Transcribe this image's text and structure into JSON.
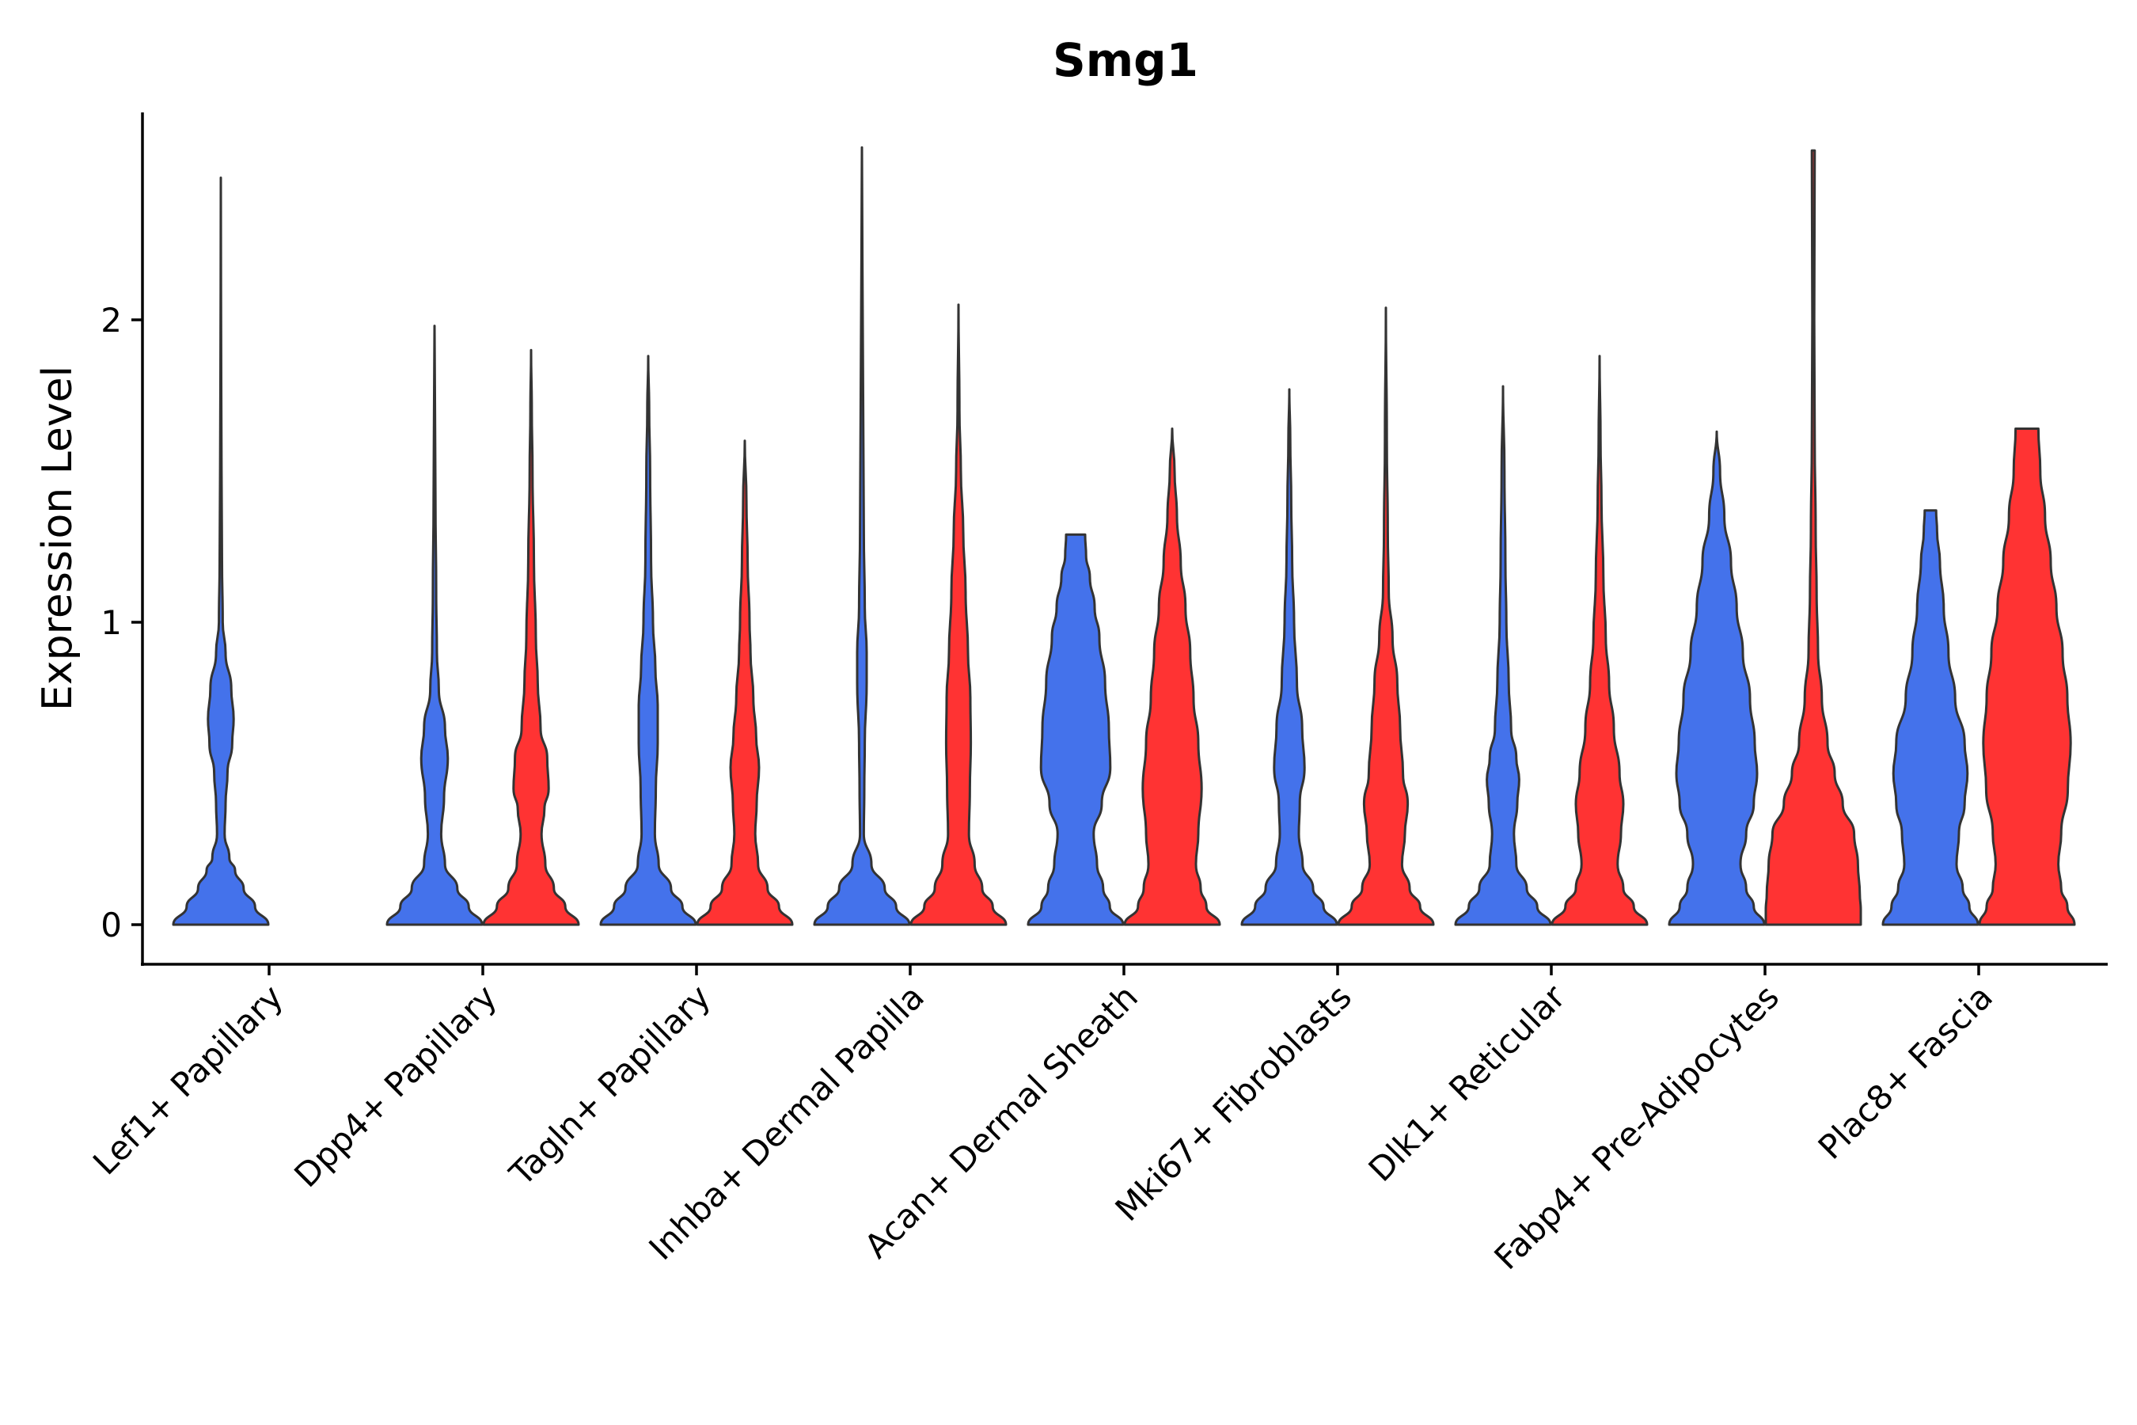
{
  "chart_data": {
    "type": "violin",
    "title": "Smg1",
    "xlabel": "",
    "ylabel": "Expression Level",
    "ylim": [
      -0.13,
      2.7
    ],
    "yticks": [
      0,
      1,
      2
    ],
    "grid": false,
    "legend": "none",
    "categories": [
      "Lef1+ Papillary",
      "Dpp4+ Papillary",
      "Tagln+ Papillary",
      "Inhba+ Dermal Papilla",
      "Acan+ Dermal Sheath",
      "Mki67+ Fibroblasts",
      "Dlk1+ Reticular",
      "Fabp4+ Pre-Adipocytes",
      "Plac8+ Fascia"
    ],
    "series": [
      {
        "name": "group-blue",
        "color": "#4472EB",
        "max_values": [
          2.47,
          1.98,
          1.88,
          2.57,
          1.29,
          1.77,
          1.78,
          1.63,
          1.37
        ]
      },
      {
        "name": "group-red",
        "color": "#FF3333",
        "max_values": [
          null,
          1.9,
          1.6,
          2.05,
          1.64,
          2.04,
          1.88,
          2.56,
          1.64
        ]
      }
    ],
    "violins": [
      {
        "category": "Lef1+ Papillary",
        "series": "group-blue",
        "max": 2.47,
        "flat_top": false,
        "profile": [
          [
            0,
            1.0
          ],
          [
            0.06,
            0.72
          ],
          [
            0.12,
            0.48
          ],
          [
            0.18,
            0.3
          ],
          [
            0.22,
            0.18
          ],
          [
            0.3,
            0.08
          ],
          [
            0.4,
            0.1
          ],
          [
            0.5,
            0.14
          ],
          [
            0.6,
            0.24
          ],
          [
            0.68,
            0.27
          ],
          [
            0.78,
            0.22
          ],
          [
            0.9,
            0.1
          ],
          [
            1.0,
            0.04
          ],
          [
            1.2,
            0.025
          ],
          [
            1.5,
            0.015
          ],
          [
            1.8,
            0.008
          ],
          [
            2.1,
            0.004
          ],
          [
            2.47,
            0.0
          ]
        ]
      },
      {
        "category": "Dpp4+ Papillary",
        "series": "group-blue",
        "max": 1.98,
        "flat_top": false,
        "profile": [
          [
            0,
            1.0
          ],
          [
            0.06,
            0.72
          ],
          [
            0.12,
            0.48
          ],
          [
            0.2,
            0.22
          ],
          [
            0.3,
            0.14
          ],
          [
            0.42,
            0.2
          ],
          [
            0.55,
            0.28
          ],
          [
            0.65,
            0.22
          ],
          [
            0.78,
            0.09
          ],
          [
            0.9,
            0.05
          ],
          [
            1.1,
            0.035
          ],
          [
            1.4,
            0.02
          ],
          [
            1.7,
            0.01
          ],
          [
            1.98,
            0.0
          ]
        ]
      },
      {
        "category": "Dpp4+ Papillary",
        "series": "group-red",
        "max": 1.9,
        "flat_top": false,
        "profile": [
          [
            0,
            1.0
          ],
          [
            0.06,
            0.72
          ],
          [
            0.12,
            0.48
          ],
          [
            0.2,
            0.3
          ],
          [
            0.3,
            0.22
          ],
          [
            0.38,
            0.28
          ],
          [
            0.45,
            0.37
          ],
          [
            0.55,
            0.34
          ],
          [
            0.65,
            0.2
          ],
          [
            0.8,
            0.14
          ],
          [
            0.95,
            0.1
          ],
          [
            1.2,
            0.06
          ],
          [
            1.5,
            0.03
          ],
          [
            1.7,
            0.015
          ],
          [
            1.9,
            0.0
          ]
        ]
      },
      {
        "category": "Tagln+ Papillary",
        "series": "group-blue",
        "max": 1.88,
        "flat_top": false,
        "profile": [
          [
            0,
            1.0
          ],
          [
            0.06,
            0.72
          ],
          [
            0.12,
            0.48
          ],
          [
            0.2,
            0.22
          ],
          [
            0.3,
            0.14
          ],
          [
            0.45,
            0.16
          ],
          [
            0.6,
            0.2
          ],
          [
            0.72,
            0.2
          ],
          [
            0.85,
            0.15
          ],
          [
            1.0,
            0.1
          ],
          [
            1.2,
            0.06
          ],
          [
            1.5,
            0.04
          ],
          [
            1.7,
            0.02
          ],
          [
            1.88,
            0.0
          ]
        ]
      },
      {
        "category": "Tagln+ Papillary",
        "series": "group-red",
        "max": 1.6,
        "flat_top": false,
        "profile": [
          [
            0,
            1.0
          ],
          [
            0.06,
            0.72
          ],
          [
            0.12,
            0.48
          ],
          [
            0.2,
            0.28
          ],
          [
            0.3,
            0.22
          ],
          [
            0.4,
            0.25
          ],
          [
            0.52,
            0.3
          ],
          [
            0.62,
            0.24
          ],
          [
            0.75,
            0.18
          ],
          [
            0.9,
            0.12
          ],
          [
            1.0,
            0.1
          ],
          [
            1.2,
            0.06
          ],
          [
            1.4,
            0.035
          ],
          [
            1.6,
            0.0
          ]
        ]
      },
      {
        "category": "Inhba+ Dermal Papilla",
        "series": "group-blue",
        "max": 2.57,
        "flat_top": false,
        "profile": [
          [
            0,
            1.0
          ],
          [
            0.06,
            0.72
          ],
          [
            0.12,
            0.48
          ],
          [
            0.2,
            0.2
          ],
          [
            0.3,
            0.04
          ],
          [
            0.45,
            0.05
          ],
          [
            0.6,
            0.06
          ],
          [
            0.8,
            0.1
          ],
          [
            0.9,
            0.1
          ],
          [
            1.05,
            0.06
          ],
          [
            1.3,
            0.04
          ],
          [
            1.6,
            0.03
          ],
          [
            1.9,
            0.02
          ],
          [
            2.2,
            0.01
          ],
          [
            2.57,
            0.0
          ]
        ]
      },
      {
        "category": "Inhba+ Dermal Papilla",
        "series": "group-red",
        "max": 2.05,
        "flat_top": false,
        "profile": [
          [
            0,
            1.0
          ],
          [
            0.06,
            0.72
          ],
          [
            0.12,
            0.5
          ],
          [
            0.2,
            0.34
          ],
          [
            0.3,
            0.22
          ],
          [
            0.45,
            0.24
          ],
          [
            0.6,
            0.26
          ],
          [
            0.75,
            0.25
          ],
          [
            0.9,
            0.2
          ],
          [
            1.1,
            0.15
          ],
          [
            1.3,
            0.1
          ],
          [
            1.5,
            0.05
          ],
          [
            1.7,
            0.02
          ],
          [
            2.05,
            0.0
          ]
        ]
      },
      {
        "category": "Acan+ Dermal Sheath",
        "series": "group-blue",
        "max": 1.29,
        "flat_top": true,
        "profile": [
          [
            0,
            1.0
          ],
          [
            0.06,
            0.72
          ],
          [
            0.12,
            0.58
          ],
          [
            0.2,
            0.45
          ],
          [
            0.3,
            0.38
          ],
          [
            0.4,
            0.55
          ],
          [
            0.52,
            0.73
          ],
          [
            0.65,
            0.7
          ],
          [
            0.8,
            0.62
          ],
          [
            0.95,
            0.5
          ],
          [
            1.05,
            0.4
          ],
          [
            1.15,
            0.3
          ],
          [
            1.22,
            0.22
          ],
          [
            1.29,
            0.2
          ]
        ]
      },
      {
        "category": "Acan+ Dermal Sheath",
        "series": "group-red",
        "max": 1.64,
        "flat_top": false,
        "profile": [
          [
            0,
            1.0
          ],
          [
            0.06,
            0.72
          ],
          [
            0.12,
            0.6
          ],
          [
            0.2,
            0.5
          ],
          [
            0.3,
            0.55
          ],
          [
            0.45,
            0.62
          ],
          [
            0.6,
            0.55
          ],
          [
            0.75,
            0.45
          ],
          [
            0.9,
            0.38
          ],
          [
            1.05,
            0.28
          ],
          [
            1.2,
            0.18
          ],
          [
            1.35,
            0.1
          ],
          [
            1.5,
            0.05
          ],
          [
            1.64,
            0.0
          ]
        ]
      },
      {
        "category": "Mki67+ Fibroblasts",
        "series": "group-blue",
        "max": 1.77,
        "flat_top": false,
        "profile": [
          [
            0,
            1.0
          ],
          [
            0.06,
            0.72
          ],
          [
            0.12,
            0.5
          ],
          [
            0.2,
            0.28
          ],
          [
            0.3,
            0.2
          ],
          [
            0.4,
            0.22
          ],
          [
            0.52,
            0.32
          ],
          [
            0.65,
            0.27
          ],
          [
            0.8,
            0.16
          ],
          [
            1.0,
            0.1
          ],
          [
            1.2,
            0.06
          ],
          [
            1.4,
            0.04
          ],
          [
            1.6,
            0.02
          ],
          [
            1.77,
            0.0
          ]
        ]
      },
      {
        "category": "Mki67+ Fibroblasts",
        "series": "group-red",
        "max": 2.04,
        "flat_top": false,
        "profile": [
          [
            0,
            1.0
          ],
          [
            0.06,
            0.72
          ],
          [
            0.12,
            0.5
          ],
          [
            0.2,
            0.34
          ],
          [
            0.3,
            0.4
          ],
          [
            0.4,
            0.46
          ],
          [
            0.5,
            0.36
          ],
          [
            0.65,
            0.3
          ],
          [
            0.8,
            0.24
          ],
          [
            0.95,
            0.14
          ],
          [
            1.1,
            0.06
          ],
          [
            1.3,
            0.04
          ],
          [
            1.6,
            0.02
          ],
          [
            2.04,
            0.0
          ]
        ]
      },
      {
        "category": "Dlk1+ Reticular",
        "series": "group-blue",
        "max": 1.78,
        "flat_top": false,
        "profile": [
          [
            0,
            1.0
          ],
          [
            0.06,
            0.72
          ],
          [
            0.12,
            0.5
          ],
          [
            0.2,
            0.28
          ],
          [
            0.3,
            0.23
          ],
          [
            0.4,
            0.3
          ],
          [
            0.48,
            0.34
          ],
          [
            0.55,
            0.28
          ],
          [
            0.65,
            0.17
          ],
          [
            0.8,
            0.12
          ],
          [
            1.0,
            0.07
          ],
          [
            1.2,
            0.05
          ],
          [
            1.5,
            0.03
          ],
          [
            1.78,
            0.0
          ]
        ]
      },
      {
        "category": "Dlk1+ Reticular",
        "series": "group-red",
        "max": 1.88,
        "flat_top": false,
        "profile": [
          [
            0,
            1.0
          ],
          [
            0.06,
            0.72
          ],
          [
            0.12,
            0.5
          ],
          [
            0.2,
            0.38
          ],
          [
            0.3,
            0.45
          ],
          [
            0.4,
            0.5
          ],
          [
            0.5,
            0.42
          ],
          [
            0.65,
            0.3
          ],
          [
            0.8,
            0.2
          ],
          [
            0.95,
            0.13
          ],
          [
            1.15,
            0.08
          ],
          [
            1.4,
            0.04
          ],
          [
            1.6,
            0.02
          ],
          [
            1.88,
            0.0
          ]
        ]
      },
      {
        "category": "Fabp4+ Pre-Adipocytes",
        "series": "group-blue",
        "max": 1.63,
        "flat_top": false,
        "profile": [
          [
            0,
            1.0
          ],
          [
            0.06,
            0.78
          ],
          [
            0.12,
            0.62
          ],
          [
            0.2,
            0.5
          ],
          [
            0.3,
            0.62
          ],
          [
            0.4,
            0.78
          ],
          [
            0.5,
            0.85
          ],
          [
            0.6,
            0.8
          ],
          [
            0.75,
            0.7
          ],
          [
            0.9,
            0.55
          ],
          [
            1.05,
            0.42
          ],
          [
            1.2,
            0.3
          ],
          [
            1.35,
            0.16
          ],
          [
            1.5,
            0.07
          ],
          [
            1.63,
            0.0
          ]
        ]
      },
      {
        "category": "Fabp4+ Pre-Adipocytes",
        "series": "group-red",
        "max": 2.56,
        "flat_top": true,
        "profile": [
          [
            0,
            1.0
          ],
          [
            0.05,
            1.0
          ],
          [
            0.1,
            0.98
          ],
          [
            0.2,
            0.94
          ],
          [
            0.3,
            0.86
          ],
          [
            0.4,
            0.62
          ],
          [
            0.5,
            0.45
          ],
          [
            0.6,
            0.3
          ],
          [
            0.75,
            0.18
          ],
          [
            0.9,
            0.1
          ],
          [
            1.1,
            0.07
          ],
          [
            1.3,
            0.05
          ],
          [
            1.6,
            0.03
          ],
          [
            2.0,
            0.02
          ],
          [
            2.56,
            0.03
          ]
        ]
      },
      {
        "category": "Plac8+ Fascia",
        "series": "group-blue",
        "max": 1.37,
        "flat_top": true,
        "profile": [
          [
            0,
            1.0
          ],
          [
            0.06,
            0.82
          ],
          [
            0.12,
            0.68
          ],
          [
            0.2,
            0.55
          ],
          [
            0.3,
            0.6
          ],
          [
            0.4,
            0.72
          ],
          [
            0.5,
            0.78
          ],
          [
            0.6,
            0.72
          ],
          [
            0.75,
            0.52
          ],
          [
            0.9,
            0.38
          ],
          [
            1.05,
            0.28
          ],
          [
            1.2,
            0.2
          ],
          [
            1.3,
            0.14
          ],
          [
            1.37,
            0.12
          ]
        ]
      },
      {
        "category": "Plac8+ Fascia",
        "series": "group-red",
        "max": 1.64,
        "flat_top": true,
        "profile": [
          [
            0,
            1.0
          ],
          [
            0.06,
            0.85
          ],
          [
            0.12,
            0.72
          ],
          [
            0.2,
            0.66
          ],
          [
            0.3,
            0.72
          ],
          [
            0.45,
            0.86
          ],
          [
            0.6,
            0.92
          ],
          [
            0.75,
            0.85
          ],
          [
            0.9,
            0.75
          ],
          [
            1.05,
            0.62
          ],
          [
            1.2,
            0.5
          ],
          [
            1.35,
            0.38
          ],
          [
            1.5,
            0.28
          ],
          [
            1.64,
            0.24
          ]
        ]
      }
    ]
  }
}
